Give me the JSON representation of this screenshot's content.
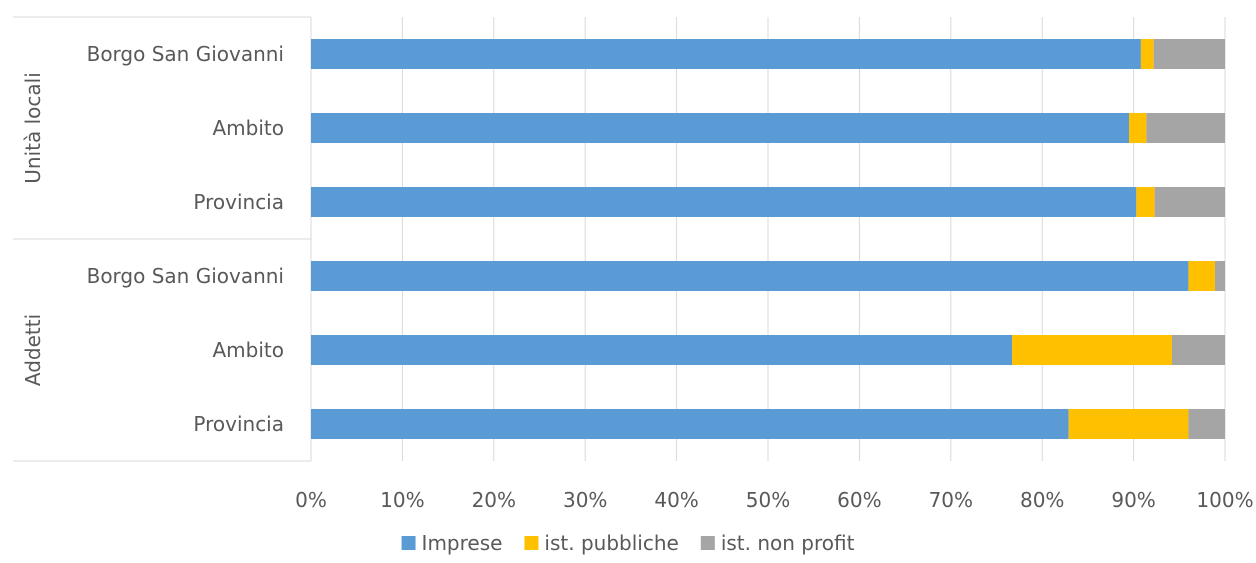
{
  "chart_data": {
    "type": "bar",
    "orientation": "horizontal",
    "stacked": "percent",
    "groups": [
      {
        "label": "Unità locali",
        "categories": [
          "Borgo San Giovanni",
          "Ambito",
          "Provincia"
        ]
      },
      {
        "label": "Addetti",
        "categories": [
          "Borgo San Giovanni",
          "Ambito",
          "Provincia"
        ]
      }
    ],
    "series": [
      {
        "name": "Imprese",
        "color": "#5b9bd5",
        "values": [
          90.8,
          89.5,
          90.3,
          96.0,
          76.7,
          82.9
        ]
      },
      {
        "name": "ist. pubbliche",
        "color": "#ffc000",
        "values": [
          1.4,
          1.9,
          2.0,
          2.9,
          17.5,
          13.1
        ]
      },
      {
        "name": "ist. non profit",
        "color": "#a5a5a5",
        "values": [
          7.8,
          8.6,
          7.7,
          1.1,
          5.8,
          4.0
        ]
      }
    ],
    "xlim": [
      0,
      100
    ],
    "xticks": [
      "0%",
      "10%",
      "20%",
      "30%",
      "40%",
      "50%",
      "60%",
      "70%",
      "80%",
      "90%",
      "100%"
    ],
    "grid": true,
    "legend": "bottom"
  }
}
